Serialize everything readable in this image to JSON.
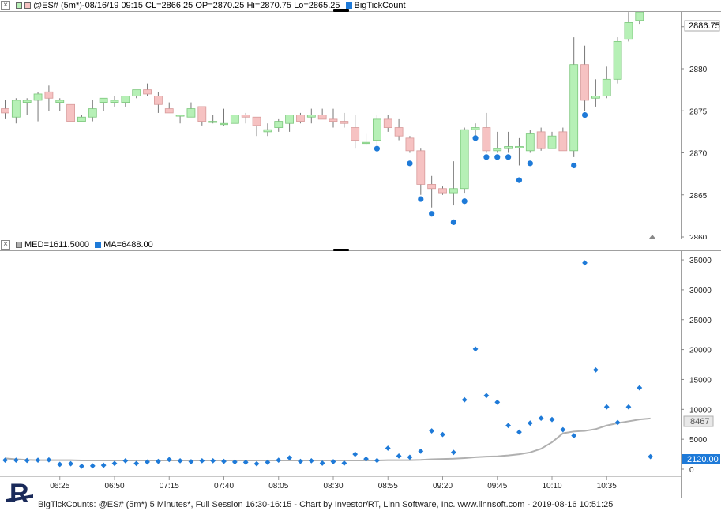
{
  "price_panel": {
    "legend_text": "@ES# (5m*)-08/16/19 09:15 CL=2866.25 OP=2870.25 Hi=2870.75 Lo=2865.25",
    "indicator_label": "BigTickCount",
    "last_price": "2886.75",
    "y_ticks": [
      "2885",
      "2880",
      "2875",
      "2870",
      "2865",
      "2860"
    ],
    "colors": {
      "up": "#b6f0b6",
      "down": "#f6c2c2",
      "wick": "#777777",
      "dot": "#1e7ad8"
    }
  },
  "volume_panel": {
    "legend_med": "MED=1611.5000",
    "legend_ma": "MA=6488.00",
    "y_ticks": [
      "35000",
      "30000",
      "25000",
      "20000",
      "15000",
      "10000",
      "5000",
      "0"
    ],
    "ma_value": "8467",
    "last_value": "2120.00",
    "colors": {
      "dot": "#1e7ad8",
      "ma": "#b0b0b0",
      "box": "#1e7ad8"
    }
  },
  "x_axis": {
    "labels": [
      "06:25",
      "06:50",
      "07:15",
      "07:40",
      "08:05",
      "08:30",
      "08:55",
      "09:20",
      "09:45",
      "10:10",
      "10:35"
    ]
  },
  "footer": {
    "text": "BigTickCounts: @ES# (5m*) 5 Minutes*, Full Session 16:30-16:15 - Chart by Investor/RT, Linn Software, Inc. www.linnsoft.com - 2019-08-16 10:51:25"
  },
  "chart_data": [
    {
      "type": "candlestick",
      "title": "@ES# (5m*)-08/16/19 09:15 CL=2866.25 OP=2870.25 Hi=2870.75 Lo=2865.25",
      "ylim": [
        2860,
        2888
      ],
      "candles": [
        {
          "o": 2875.25,
          "h": 2876.25,
          "l": 2874.0,
          "c": 2874.75
        },
        {
          "o": 2874.25,
          "h": 2876.5,
          "l": 2873.5,
          "c": 2876.25
        },
        {
          "o": 2876.0,
          "h": 2876.5,
          "l": 2874.5,
          "c": 2876.25
        },
        {
          "o": 2876.25,
          "h": 2877.25,
          "l": 2873.75,
          "c": 2877.0
        },
        {
          "o": 2877.25,
          "h": 2878.0,
          "l": 2875.0,
          "c": 2876.5
        },
        {
          "o": 2876.0,
          "h": 2876.5,
          "l": 2875.0,
          "c": 2876.25
        },
        {
          "o": 2875.75,
          "h": 2875.75,
          "l": 2873.75,
          "c": 2873.75
        },
        {
          "o": 2873.75,
          "h": 2874.5,
          "l": 2873.75,
          "c": 2874.25
        },
        {
          "o": 2874.25,
          "h": 2876.25,
          "l": 2873.75,
          "c": 2875.25
        },
        {
          "o": 2876.0,
          "h": 2876.25,
          "l": 2875.0,
          "c": 2876.5
        },
        {
          "o": 2876.0,
          "h": 2876.75,
          "l": 2875.5,
          "c": 2876.25
        },
        {
          "o": 2876.0,
          "h": 2876.75,
          "l": 2875.5,
          "c": 2876.75
        },
        {
          "o": 2876.75,
          "h": 2877.5,
          "l": 2876.5,
          "c": 2877.5
        },
        {
          "o": 2877.5,
          "h": 2878.25,
          "l": 2876.75,
          "c": 2877.0
        },
        {
          "o": 2876.75,
          "h": 2877.25,
          "l": 2874.75,
          "c": 2875.75
        },
        {
          "o": 2875.25,
          "h": 2876.0,
          "l": 2874.75,
          "c": 2874.75
        },
        {
          "o": 2874.5,
          "h": 2874.5,
          "l": 2873.5,
          "c": 2874.5
        },
        {
          "o": 2874.25,
          "h": 2876.0,
          "l": 2874.25,
          "c": 2875.25
        },
        {
          "o": 2875.5,
          "h": 2875.5,
          "l": 2873.25,
          "c": 2873.75
        },
        {
          "o": 2873.75,
          "h": 2874.5,
          "l": 2873.5,
          "c": 2873.75
        },
        {
          "o": 2873.5,
          "h": 2875.25,
          "l": 2873.25,
          "c": 2873.5
        },
        {
          "o": 2873.5,
          "h": 2874.5,
          "l": 2873.5,
          "c": 2874.5
        },
        {
          "o": 2874.5,
          "h": 2874.75,
          "l": 2873.5,
          "c": 2874.25
        },
        {
          "o": 2874.25,
          "h": 2874.25,
          "l": 2872.0,
          "c": 2873.25
        },
        {
          "o": 2872.5,
          "h": 2873.5,
          "l": 2872.0,
          "c": 2872.75
        },
        {
          "o": 2873.0,
          "h": 2874.0,
          "l": 2872.5,
          "c": 2873.75
        },
        {
          "o": 2873.5,
          "h": 2874.5,
          "l": 2872.5,
          "c": 2874.5
        },
        {
          "o": 2874.5,
          "h": 2874.75,
          "l": 2873.5,
          "c": 2873.75
        },
        {
          "o": 2874.25,
          "h": 2875.25,
          "l": 2873.5,
          "c": 2874.5
        },
        {
          "o": 2874.5,
          "h": 2875.25,
          "l": 2874.0,
          "c": 2874.0
        },
        {
          "o": 2874.0,
          "h": 2875.25,
          "l": 2873.0,
          "c": 2873.75
        },
        {
          "o": 2873.75,
          "h": 2874.75,
          "l": 2873.0,
          "c": 2873.5
        },
        {
          "o": 2873.0,
          "h": 2874.5,
          "l": 2870.5,
          "c": 2871.5
        },
        {
          "o": 2871.25,
          "h": 2872.25,
          "l": 2871.0,
          "c": 2871.25
        },
        {
          "o": 2871.5,
          "h": 2874.5,
          "l": 2871.0,
          "c": 2874.0
        },
        {
          "o": 2874.0,
          "h": 2874.5,
          "l": 2872.5,
          "c": 2873.0
        },
        {
          "o": 2873.0,
          "h": 2874.0,
          "l": 2871.5,
          "c": 2872.0
        },
        {
          "o": 2871.75,
          "h": 2872.0,
          "l": 2870.0,
          "c": 2870.25
        },
        {
          "o": 2870.25,
          "h": 2870.5,
          "l": 2865.0,
          "c": 2866.25
        },
        {
          "o": 2866.25,
          "h": 2867.25,
          "l": 2863.5,
          "c": 2865.75
        },
        {
          "o": 2865.75,
          "h": 2866.0,
          "l": 2865.0,
          "c": 2865.25
        },
        {
          "o": 2865.25,
          "h": 2869.0,
          "l": 2863.75,
          "c": 2865.75
        },
        {
          "o": 2865.75,
          "h": 2873.0,
          "l": 2865.25,
          "c": 2872.75
        },
        {
          "o": 2872.75,
          "h": 2873.5,
          "l": 2872.0,
          "c": 2873.0
        },
        {
          "o": 2873.0,
          "h": 2874.75,
          "l": 2870.0,
          "c": 2870.25
        },
        {
          "o": 2870.25,
          "h": 2872.5,
          "l": 2870.0,
          "c": 2870.5
        },
        {
          "o": 2870.5,
          "h": 2872.5,
          "l": 2870.0,
          "c": 2870.75
        },
        {
          "o": 2870.75,
          "h": 2871.75,
          "l": 2868.5,
          "c": 2870.75
        },
        {
          "o": 2870.25,
          "h": 2872.75,
          "l": 2870.0,
          "c": 2872.25
        },
        {
          "o": 2872.5,
          "h": 2873.0,
          "l": 2870.25,
          "c": 2870.5
        },
        {
          "o": 2870.5,
          "h": 2872.5,
          "l": 2870.5,
          "c": 2872.0
        },
        {
          "o": 2872.5,
          "h": 2873.0,
          "l": 2870.25,
          "c": 2870.25
        },
        {
          "o": 2870.25,
          "h": 2883.75,
          "l": 2869.5,
          "c": 2880.5
        },
        {
          "o": 2880.5,
          "h": 2882.75,
          "l": 2875.0,
          "c": 2876.25
        },
        {
          "o": 2876.5,
          "h": 2878.75,
          "l": 2875.5,
          "c": 2876.75
        },
        {
          "o": 2876.75,
          "h": 2880.25,
          "l": 2876.5,
          "c": 2878.75
        },
        {
          "o": 2878.75,
          "h": 2883.75,
          "l": 2878.25,
          "c": 2883.25
        },
        {
          "o": 2883.5,
          "h": 2886.75,
          "l": 2883.25,
          "c": 2885.5
        },
        {
          "o": 2885.75,
          "h": 2886.75,
          "l": 2885.25,
          "c": 2886.75
        }
      ],
      "dots": [
        {
          "i": 34,
          "v": 2870.5
        },
        {
          "i": 37,
          "v": 2868.75
        },
        {
          "i": 38,
          "v": 2864.5
        },
        {
          "i": 39,
          "v": 2862.75
        },
        {
          "i": 41,
          "v": 2861.75
        },
        {
          "i": 42,
          "v": 2864.25
        },
        {
          "i": 43,
          "v": 2871.75
        },
        {
          "i": 44,
          "v": 2869.5
        },
        {
          "i": 45,
          "v": 2869.5
        },
        {
          "i": 46,
          "v": 2869.5
        },
        {
          "i": 47,
          "v": 2866.75
        },
        {
          "i": 48,
          "v": 2868.75
        },
        {
          "i": 52,
          "v": 2868.5
        },
        {
          "i": 53,
          "v": 2874.5
        }
      ]
    },
    {
      "type": "scatter",
      "title": "BigTickCount",
      "ylim": [
        -1000,
        36500
      ],
      "series": [
        {
          "name": "MED",
          "values": [
            1500,
            1500,
            1450,
            1500,
            1550,
            800,
            900,
            500,
            550,
            650,
            950,
            1400,
            950,
            1200,
            1300,
            1600,
            1400,
            1250,
            1400,
            1400,
            1300,
            1200,
            1150,
            900,
            1150,
            1500,
            1900,
            1300,
            1400,
            1000,
            1250,
            1000,
            2500,
            1700,
            1450,
            3500,
            2200,
            2000,
            3000,
            6400,
            5800,
            2800,
            11600,
            20100,
            12300,
            11200,
            7300,
            6200,
            7700,
            8500,
            8300,
            6600,
            5600,
            34500,
            16600,
            10400,
            7800,
            10400,
            13600,
            2100
          ]
        },
        {
          "name": "MA",
          "values": [
            1800,
            1650,
            1550,
            1500,
            1500,
            1500,
            1500,
            1450,
            1450,
            1450,
            1450,
            1450,
            1450,
            1450,
            1450,
            1450,
            1450,
            1450,
            1450,
            1450,
            1450,
            1450,
            1450,
            1450,
            1450,
            1450,
            1450,
            1450,
            1450,
            1450,
            1450,
            1450,
            1450,
            1450,
            1450,
            1500,
            1500,
            1500,
            1550,
            1650,
            1700,
            1750,
            1850,
            2000,
            2100,
            2150,
            2300,
            2500,
            2800,
            3400,
            4500,
            6000,
            6300,
            6400,
            6700,
            7300,
            7700,
            8000,
            8300,
            8467
          ]
        }
      ]
    }
  ]
}
